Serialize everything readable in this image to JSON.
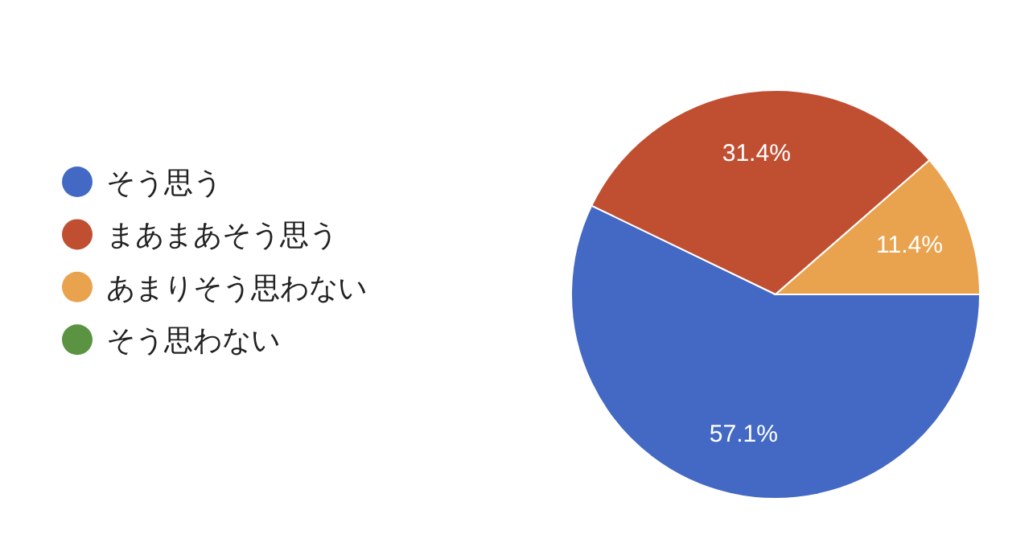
{
  "chart_data": {
    "type": "pie",
    "categories": [
      "そう思う",
      "まあまあそう思う",
      "あまりそう思わない",
      "そう思わない"
    ],
    "values": [
      57.1,
      31.4,
      11.4,
      0
    ],
    "colors": [
      "#4369c4",
      "#c04f32",
      "#e9a24d",
      "#5a9442"
    ],
    "value_labels": [
      "57.1%",
      "31.4%",
      "11.4%",
      null
    ],
    "legend": "left"
  }
}
